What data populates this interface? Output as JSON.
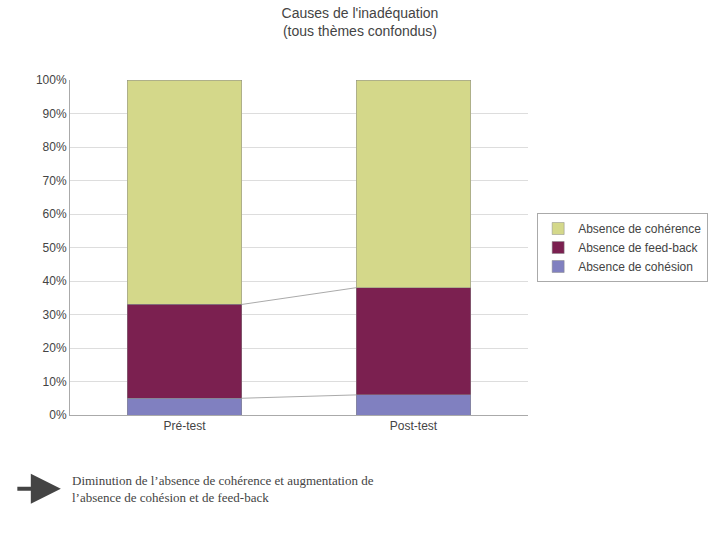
{
  "chart_data": {
    "type": "bar",
    "stacked": true,
    "title": "Causes de l'inadéquation\n(tous thèmes confondus)",
    "categories": [
      "Pré-test",
      "Post-test"
    ],
    "series": [
      {
        "name": "Absence de cohésion",
        "color": "#8080c0",
        "values": [
          5,
          6
        ]
      },
      {
        "name": "Absence de feed-back",
        "color": "#7b2050",
        "values": [
          28,
          32
        ]
      },
      {
        "name": "Absence de cohérence",
        "color": "#d4d88a",
        "values": [
          67,
          62
        ]
      }
    ],
    "ylim": [
      0,
      100
    ],
    "yticks": [
      {
        "value": 0,
        "label": "0%"
      },
      {
        "value": 10,
        "label": "10%"
      },
      {
        "value": 20,
        "label": "20%"
      },
      {
        "value": 30,
        "label": "30%"
      },
      {
        "value": 40,
        "label": "40%"
      },
      {
        "value": 50,
        "label": "50%"
      },
      {
        "value": 60,
        "label": "60%"
      },
      {
        "value": 70,
        "label": "70%"
      },
      {
        "value": 80,
        "label": "80%"
      },
      {
        "value": 90,
        "label": "90%"
      },
      {
        "value": 100,
        "label": "100%"
      }
    ],
    "grid": true,
    "legend": "right",
    "annotation": "Diminution de l’absence de cohérence et augmentation de\nl’absence de cohésion et de feed-back"
  }
}
